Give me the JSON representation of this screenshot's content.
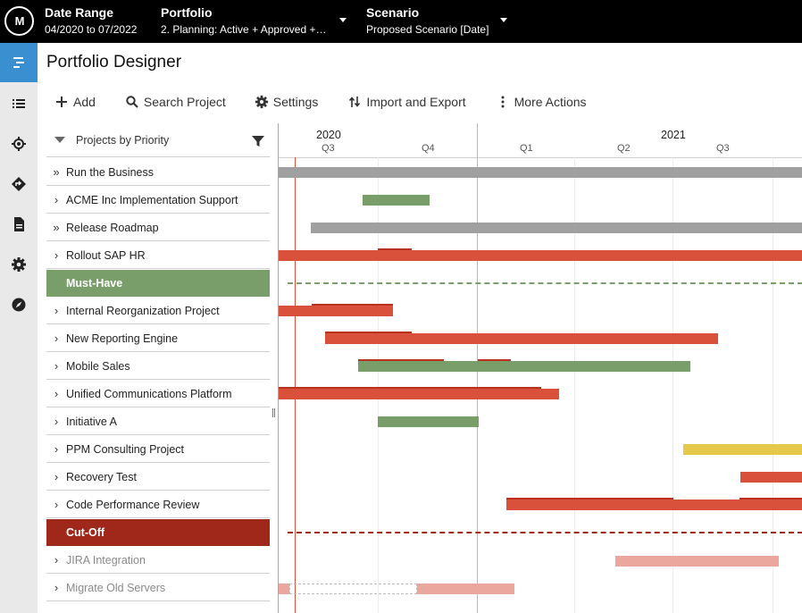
{
  "topbar": {
    "logo": "M",
    "date_range_label": "Date Range",
    "date_range_value": "04/2020 to 07/2022",
    "portfolio_label": "Portfolio",
    "portfolio_value": "2. Planning: Active + Approved +…",
    "scenario_label": "Scenario",
    "scenario_value": "Proposed Scenario [Date]"
  },
  "nav": {
    "items": [
      "roadmap-icon",
      "list-icon",
      "target-icon",
      "route-icon",
      "document-icon",
      "gear-icon",
      "compass-icon"
    ],
    "active_color": "#3a8fd0"
  },
  "page": {
    "title": "Portfolio Designer"
  },
  "toolbar": {
    "add": "Add",
    "search": "Search Project",
    "settings": "Settings",
    "import_export": "Import and Export",
    "more": "More Actions"
  },
  "list": {
    "header": "Projects by Priority",
    "rows": [
      {
        "label": "Run the Business",
        "type": "group"
      },
      {
        "label": "ACME Inc Implementation Support",
        "type": "project"
      },
      {
        "label": "Release Roadmap",
        "type": "group"
      },
      {
        "label": "Rollout SAP HR",
        "type": "project"
      },
      {
        "label": "Must-Have",
        "type": "separator-green"
      },
      {
        "label": "Internal Reorganization Project",
        "type": "project"
      },
      {
        "label": "New Reporting Engine",
        "type": "project"
      },
      {
        "label": "Mobile Sales",
        "type": "project"
      },
      {
        "label": "Unified Communications Platform",
        "type": "project"
      },
      {
        "label": "Initiative A",
        "type": "project"
      },
      {
        "label": "PPM Consulting Project",
        "type": "project"
      },
      {
        "label": "Recovery Test",
        "type": "project"
      },
      {
        "label": "Code Performance Review",
        "type": "project"
      },
      {
        "label": "Cut-Off",
        "type": "separator-red"
      },
      {
        "label": "JIRA Integration",
        "type": "muted"
      },
      {
        "label": "Migrate Old Servers",
        "type": "muted"
      }
    ]
  },
  "timeline": {
    "years": [
      "2020",
      "2021"
    ],
    "quarters": [
      "Q3",
      "Q4",
      "Q1",
      "Q2",
      "Q3"
    ]
  },
  "colors": {
    "gray": "#a0a0a0",
    "green": "#7a9e6a",
    "red": "#d9503b",
    "dark_red": "#a0281a",
    "yellow": "#e6c84a",
    "pink": "#eba79d"
  }
}
